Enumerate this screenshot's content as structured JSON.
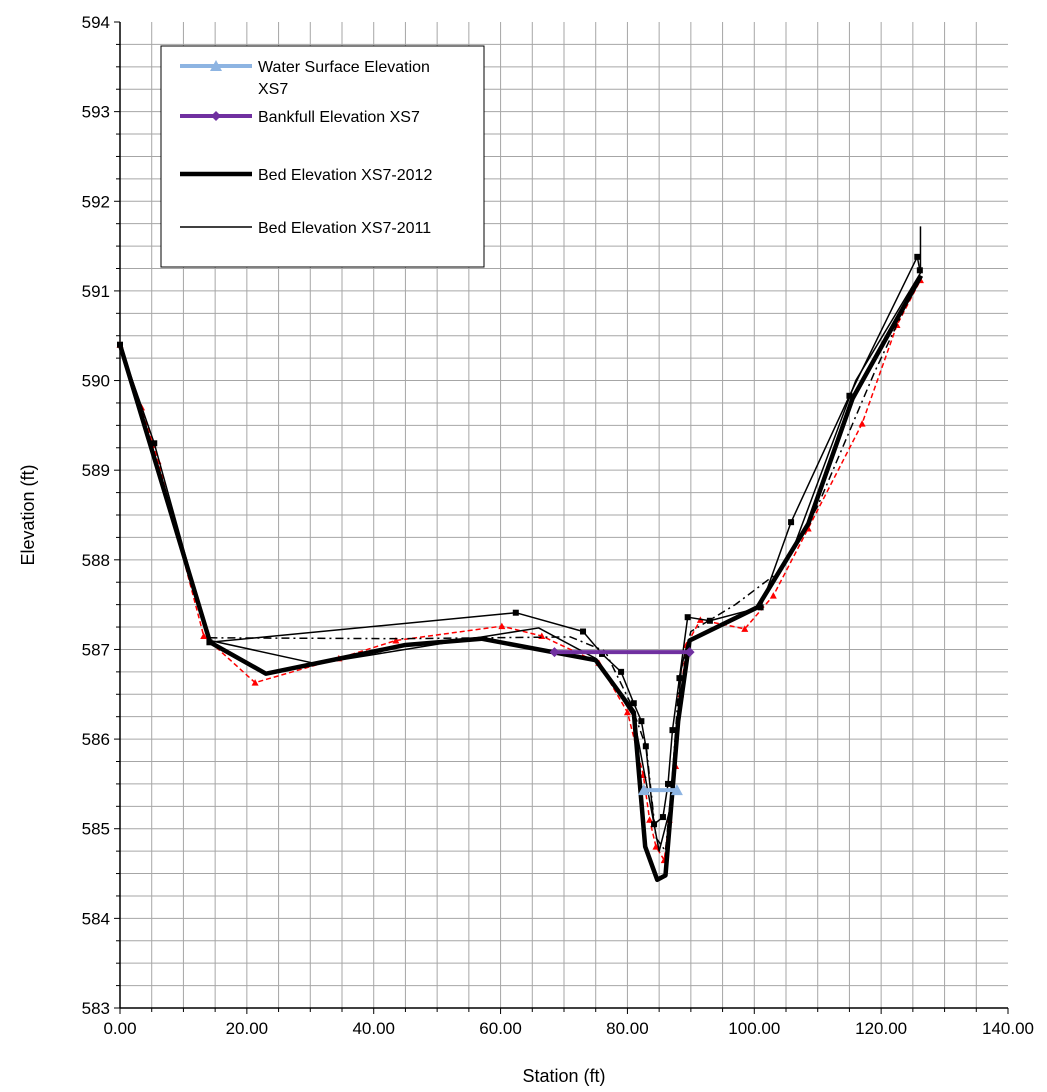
{
  "chart_data": {
    "type": "line",
    "xlabel": "Station (ft)",
    "ylabel": "Elevation (ft)",
    "xlim": [
      0,
      140
    ],
    "ylim": [
      583,
      594
    ],
    "x_major_step": 20,
    "x_minor_step": 5,
    "y_major_step": 1,
    "y_minor_step": 0.25,
    "x_tick_decimals": 2,
    "grid": true,
    "legend_position": "top-left",
    "colors": {
      "water_surface": "#8db4e2",
      "bankfull": "#7030a0",
      "bed": "#000000",
      "survey_red": "#ff0000"
    },
    "series": [
      {
        "name": "Water Surface Elevation XS7",
        "style": "water",
        "x": [
          82.6,
          87.8
        ],
        "y": [
          585.43,
          585.43
        ]
      },
      {
        "name": "Bankfull Elevation XS7",
        "style": "bankfull",
        "x": [
          68.5,
          89.8
        ],
        "y": [
          586.97,
          586.97
        ]
      },
      {
        "name": "Bed Elevation XS7-2012",
        "style": "bed_thick",
        "x": [
          0,
          14.2,
          23,
          45,
          57,
          75,
          81,
          82.8,
          84.7,
          86,
          88,
          89.8,
          100.5,
          108.5,
          115.5,
          126.3
        ],
        "y": [
          590.4,
          587.08,
          586.73,
          587.05,
          587.12,
          586.88,
          586.3,
          584.8,
          584.43,
          584.48,
          586.2,
          587.1,
          587.47,
          588.4,
          589.8,
          591.17
        ]
      },
      {
        "name": "Bed Elevation XS7-2011",
        "style": "bed_thin",
        "x": [
          0,
          14.2,
          31,
          58,
          66,
          75,
          81,
          83,
          85,
          87,
          88.5,
          89.5,
          101,
          106,
          116,
          126.2,
          126.2
        ],
        "y": [
          590.4,
          587.1,
          586.84,
          587.15,
          587.24,
          586.9,
          586.25,
          585.5,
          584.75,
          585.3,
          586.8,
          587.08,
          587.5,
          588.1,
          590.0,
          591.2,
          591.72
        ]
      },
      {
        "style": "marker_line",
        "x": [
          0,
          5.4,
          14.1,
          62.4,
          73,
          76,
          79,
          81,
          82.2,
          82.9,
          84.2,
          85.6,
          86.4,
          87.1,
          88.2,
          89.5,
          93,
          101,
          105.8,
          115,
          125.7,
          126.1
        ],
        "y": [
          590.4,
          589.3,
          587.08,
          587.41,
          587.2,
          586.95,
          586.75,
          586.4,
          586.2,
          585.92,
          585.05,
          585.13,
          585.5,
          586.1,
          586.68,
          587.36,
          587.32,
          587.47,
          588.42,
          589.83,
          591.38,
          591.23
        ]
      },
      {
        "style": "dashdot",
        "x": [
          0,
          14.2,
          44.5,
          71,
          76.5,
          80.5,
          83,
          84.5,
          86,
          87,
          88.2,
          90,
          97,
          104.5,
          110,
          119,
          126.2
        ],
        "y": [
          590.4,
          587.13,
          587.12,
          587.14,
          586.98,
          586.4,
          585.9,
          584.9,
          584.75,
          585.5,
          586.7,
          587.2,
          587.5,
          587.9,
          588.6,
          590.1,
          591.18
        ]
      },
      {
        "style": "red_dash",
        "x": [
          0,
          3.4,
          6,
          13.2,
          21.3,
          34.5,
          43.5,
          60.2,
          66.5,
          75.5,
          80,
          82.5,
          83.5,
          84.5,
          85.8,
          86.6,
          87.6,
          88.4,
          89.3,
          91.5,
          98.5,
          103,
          108.5,
          117,
          122.5,
          126.2
        ],
        "y": [
          590.4,
          589.7,
          589.1,
          587.15,
          586.63,
          586.9,
          587.1,
          587.26,
          587.15,
          586.85,
          586.3,
          585.6,
          585.1,
          584.8,
          584.65,
          585.1,
          585.7,
          586.5,
          587.05,
          587.33,
          587.23,
          587.6,
          588.35,
          589.52,
          590.62,
          591.12
        ]
      }
    ]
  }
}
